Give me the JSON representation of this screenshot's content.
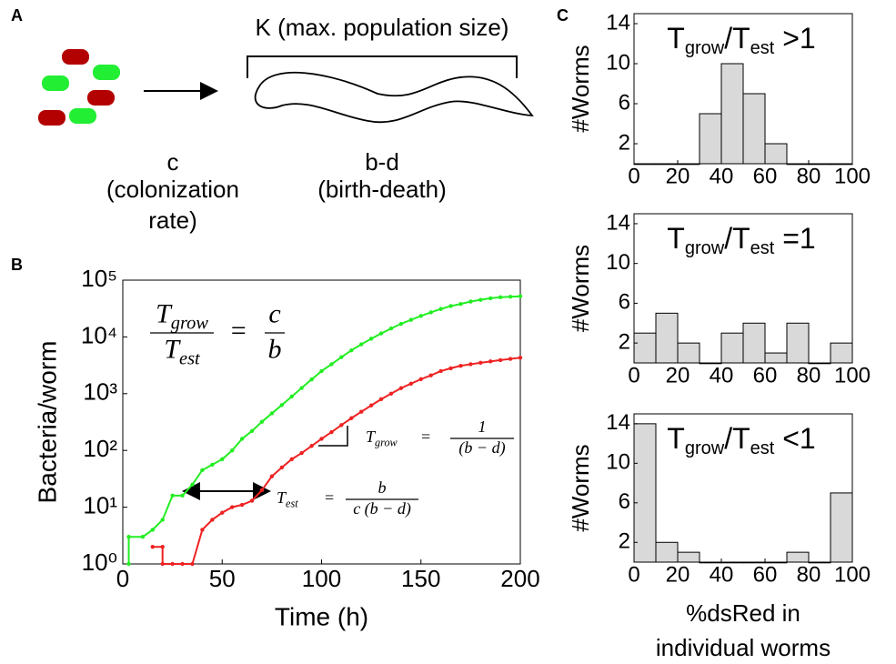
{
  "panel_labels": [
    "A",
    "B",
    "C"
  ],
  "diagram": {
    "population_label": "K (max. population size)",
    "colonization": [
      "c",
      "(colonization",
      "rate)"
    ],
    "birth_death": [
      "b-d",
      "(birth-death)"
    ]
  },
  "chart_data": [
    {
      "type": "line",
      "xlabel": "Time (h)",
      "ylabel": "Bacteria/worm",
      "log_y": true,
      "xlim": [
        0,
        200
      ],
      "xticks": [
        0,
        50,
        100,
        150,
        200
      ],
      "ylim": [
        1,
        100000
      ],
      "yticks": [
        {
          "value": 1,
          "label": "10⁰"
        },
        {
          "value": 10,
          "label": "10¹"
        },
        {
          "value": 100,
          "label": "10²"
        },
        {
          "value": 1000,
          "label": "10³"
        },
        {
          "value": 10000,
          "label": "10⁴"
        },
        {
          "value": 100000,
          "label": "10⁵"
        }
      ],
      "series": [
        {
          "color": "#22ee22",
          "x": [
            3,
            3,
            10,
            15,
            20,
            25,
            30,
            35,
            40,
            45,
            50,
            55,
            60,
            65,
            70,
            75,
            80,
            85,
            90,
            95,
            100,
            105,
            110,
            115,
            120,
            125,
            130,
            135,
            140,
            145,
            150,
            155,
            160,
            165,
            170,
            175,
            180,
            185,
            190,
            195,
            200
          ],
          "values": [
            1,
            3,
            3,
            4,
            6,
            16,
            16,
            25,
            45,
            56,
            70,
            100,
            160,
            220,
            320,
            450,
            630,
            890,
            1260,
            1780,
            2500,
            3300,
            4400,
            5800,
            7400,
            9300,
            11500,
            14100,
            17000,
            20000,
            23400,
            27000,
            31000,
            35000,
            38000,
            42000,
            45000,
            48000,
            50000,
            51000,
            52000
          ]
        },
        {
          "color": "#ee2222",
          "x": [
            15,
            20,
            20,
            25,
            30,
            35,
            40,
            45,
            50,
            55,
            60,
            65,
            70,
            75,
            80,
            85,
            90,
            95,
            100,
            105,
            110,
            115,
            120,
            125,
            130,
            135,
            140,
            145,
            150,
            155,
            160,
            165,
            170,
            175,
            180,
            185,
            190,
            195,
            200
          ],
          "values": [
            2,
            2,
            1,
            1,
            1,
            1,
            4,
            6,
            8,
            10,
            11,
            13,
            20,
            35,
            50,
            70,
            90,
            120,
            160,
            210,
            280,
            370,
            480,
            620,
            800,
            1000,
            1250,
            1500,
            1800,
            2100,
            2500,
            2800,
            3100,
            3300,
            3500,
            3700,
            3900,
            4100,
            4300
          ]
        }
      ],
      "annotations": [
        {
          "lhs_num": {
            "text": "T",
            "sub": "grow"
          },
          "lhs_den": {
            "text": "T",
            "sub": "est"
          },
          "eq": "=",
          "rhs_num": {
            "text": "c"
          },
          "rhs_den": {
            "text": "b"
          }
        },
        {
          "lhs": {
            "text": "T",
            "sub": "grow"
          },
          "eq": "=",
          "rhs_num": {
            "text": "1"
          },
          "rhs_den": {
            "text": "(b − d)"
          }
        },
        {
          "lhs": {
            "text": "T",
            "sub": "est"
          },
          "eq": "=",
          "rhs_num": {
            "text": "b"
          },
          "rhs_den": {
            "text": "c (b − d)"
          }
        }
      ]
    },
    {
      "type": "histogram",
      "title": {
        "text": "T",
        "sub": "grow",
        "text2": "/T",
        "sub2": "est",
        "text3": " >1"
      },
      "ylabel": "#Worms",
      "bins": [
        0,
        10,
        20,
        30,
        40,
        50,
        60,
        70,
        80,
        90,
        100
      ],
      "values": [
        0,
        0,
        0,
        5,
        10,
        7,
        2,
        0,
        0,
        0
      ],
      "color": "#d9d9d9",
      "xlim": [
        0,
        100
      ],
      "xticks": [
        0,
        20,
        40,
        60,
        80,
        100
      ],
      "ylim": [
        0,
        15
      ],
      "yticks": [
        2,
        6,
        10,
        14
      ]
    },
    {
      "type": "histogram",
      "title": {
        "text": "T",
        "sub": "grow",
        "text2": "/T",
        "sub2": "est",
        "text3": " =1"
      },
      "ylabel": "#Worms",
      "bins": [
        0,
        10,
        20,
        30,
        40,
        50,
        60,
        70,
        80,
        90,
        100
      ],
      "values": [
        3,
        5,
        2,
        0,
        3,
        4,
        1,
        4,
        0,
        2
      ],
      "color": "#d9d9d9",
      "xlim": [
        0,
        100
      ],
      "xticks": [
        0,
        20,
        40,
        60,
        80,
        100
      ],
      "ylim": [
        0,
        15
      ],
      "yticks": [
        2,
        6,
        10,
        14
      ]
    },
    {
      "type": "histogram",
      "title": {
        "text": "T",
        "sub": "grow",
        "text2": "/T",
        "sub2": "est",
        "text3": " <1"
      },
      "ylabel": "#Worms",
      "xlabel": [
        "%dsRed in",
        "individual worms"
      ],
      "bins": [
        0,
        10,
        20,
        30,
        40,
        50,
        60,
        70,
        80,
        90,
        100
      ],
      "values": [
        14,
        2,
        1,
        0,
        0,
        0,
        0,
        1,
        0,
        7
      ],
      "color": "#d9d9d9",
      "xlim": [
        0,
        100
      ],
      "xticks": [
        0,
        20,
        40,
        60,
        80,
        100
      ],
      "ylim": [
        0,
        15
      ],
      "yticks": [
        2,
        6,
        10,
        14
      ]
    }
  ]
}
